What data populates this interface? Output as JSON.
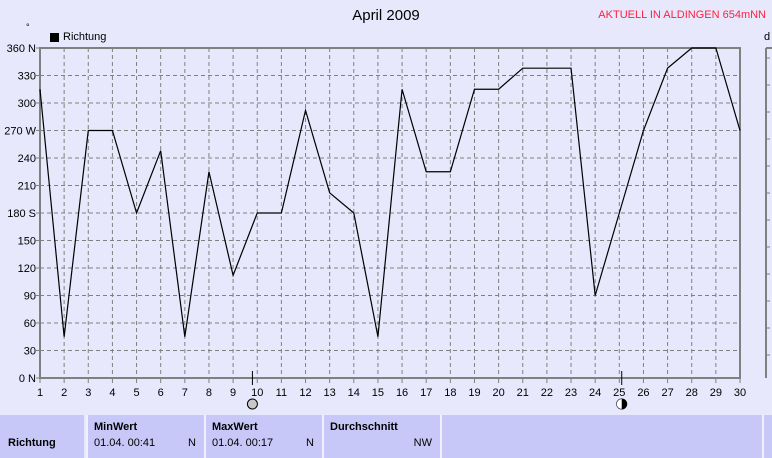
{
  "title": "April 2009",
  "station": "AKTUELL IN ALDINGEN 654mNN",
  "right_axis_label": "d",
  "degree_symbol": "°",
  "chart_data": {
    "type": "line",
    "title": "April 2009",
    "x": [
      1,
      2,
      3,
      4,
      5,
      6,
      7,
      8,
      9,
      10,
      11,
      12,
      13,
      14,
      15,
      16,
      17,
      18,
      19,
      20,
      21,
      22,
      23,
      24,
      25,
      26,
      27,
      28,
      29,
      30
    ],
    "series": [
      {
        "name": "Richtung",
        "color": "#000000",
        "values": [
          315,
          45,
          270,
          270,
          180,
          248,
          45,
          225,
          112,
          180,
          180,
          292,
          202,
          180,
          45,
          315,
          225,
          225,
          315,
          315,
          338,
          338,
          338,
          90,
          180,
          270,
          338,
          360,
          360,
          270
        ]
      }
    ],
    "xlim": [
      1,
      30
    ],
    "ylim": [
      0,
      360
    ],
    "yticks": [
      0,
      30,
      60,
      90,
      120,
      150,
      180,
      210,
      240,
      270,
      300,
      330,
      360
    ],
    "ytick_labels": [
      "0  N",
      "30",
      "60",
      "90",
      "120",
      "150",
      "180 S",
      "210",
      "240",
      "270 W",
      "300",
      "330",
      "360 N"
    ],
    "grid": true,
    "legend": "top-left",
    "markers": [
      {
        "day": 9.8,
        "icon": "full-moon-icon"
      },
      {
        "day": 25.1,
        "icon": "new-moon-icon"
      }
    ]
  },
  "table": {
    "row_label": "Richtung",
    "cols": [
      {
        "header": "MinWert",
        "value": "01.04.  00:41",
        "unit": "N"
      },
      {
        "header": "MaxWert",
        "value": "01.04.  00:17",
        "unit": "N"
      },
      {
        "header": "Durchschnitt",
        "value": "",
        "unit": "NW"
      }
    ]
  }
}
